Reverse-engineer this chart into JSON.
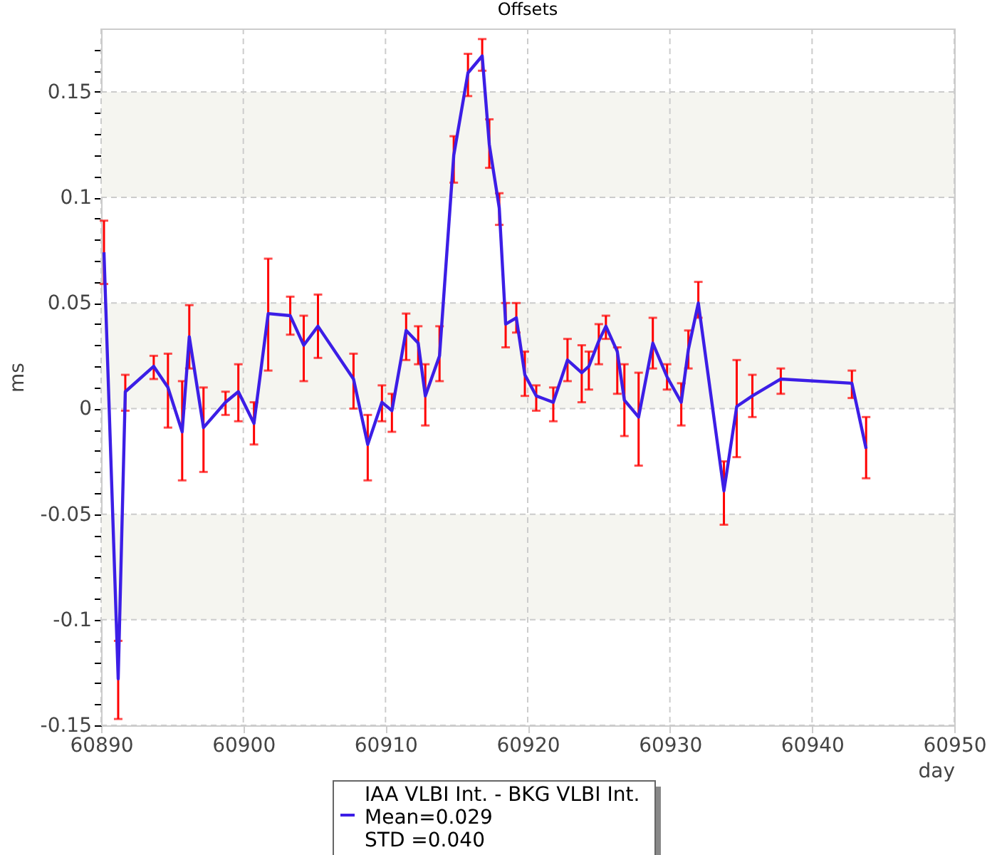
{
  "chart_data": {
    "type": "line",
    "title": "Offsets",
    "xlabel": "day",
    "ylabel": "ms",
    "x": [
      60890.2,
      60891.2,
      60891.7,
      60893.7,
      60894.7,
      60895.7,
      60896.2,
      60897.2,
      60898.75,
      60899.65,
      60900.75,
      60901.75,
      60903.3,
      60904.25,
      60905.25,
      60907.75,
      60908.75,
      60909.75,
      60910.45,
      60911.45,
      60912.3,
      60912.8,
      60913.8,
      60914.8,
      60915.8,
      60916.8,
      60917.3,
      60918.0,
      60918.45,
      60919.2,
      60919.8,
      60920.6,
      60921.8,
      60922.8,
      60923.8,
      60924.3,
      60925.0,
      60925.5,
      60926.3,
      60926.8,
      60927.8,
      60928.8,
      60929.8,
      60930.8,
      60931.3,
      60932.0,
      60933.8,
      60934.7,
      60935.8,
      60937.8,
      60942.8,
      60943.8
    ],
    "series": [
      {
        "name": "IAA VLBI Int. - BKG VLBI Int.",
        "color": "#3c1ee6",
        "values": [
          0.074,
          -0.128,
          0.008,
          0.02,
          0.01,
          -0.011,
          0.034,
          -0.009,
          0.003,
          0.008,
          -0.007,
          0.045,
          0.044,
          0.03,
          0.039,
          0.014,
          -0.017,
          0.003,
          -0.001,
          0.037,
          0.031,
          0.006,
          0.025,
          0.12,
          0.159,
          0.167,
          0.125,
          0.095,
          0.04,
          0.043,
          0.016,
          0.006,
          0.003,
          0.023,
          0.017,
          0.02,
          0.032,
          0.039,
          0.027,
          0.004,
          -0.004,
          0.031,
          0.015,
          0.003,
          0.028,
          0.05,
          -0.039,
          0.001,
          0.006,
          0.014,
          0.012,
          -0.019
        ],
        "errors": [
          [
            0.059,
            0.089
          ],
          [
            -0.147,
            -0.11
          ],
          [
            -0.001,
            0.016
          ],
          [
            0.014,
            0.025
          ],
          [
            -0.009,
            0.026
          ],
          [
            -0.034,
            0.013
          ],
          [
            0.019,
            0.049
          ],
          [
            -0.03,
            0.01
          ],
          [
            -0.003,
            0.008
          ],
          [
            -0.006,
            0.021
          ],
          [
            -0.017,
            0.003
          ],
          [
            0.018,
            0.071
          ],
          [
            0.035,
            0.053
          ],
          [
            0.013,
            0.044
          ],
          [
            0.024,
            0.054
          ],
          [
            0.0,
            0.026
          ],
          [
            -0.034,
            -0.003
          ],
          [
            -0.006,
            0.011
          ],
          [
            -0.011,
            0.007
          ],
          [
            0.023,
            0.045
          ],
          [
            0.021,
            0.039
          ],
          [
            -0.008,
            0.021
          ],
          [
            0.013,
            0.039
          ],
          [
            0.107,
            0.129
          ],
          [
            0.148,
            0.168
          ],
          [
            0.16,
            0.175
          ],
          [
            0.114,
            0.137
          ],
          [
            0.087,
            0.102
          ],
          [
            0.029,
            0.05
          ],
          [
            0.036,
            0.05
          ],
          [
            0.006,
            0.027
          ],
          [
            -0.001,
            0.011
          ],
          [
            -0.006,
            0.01
          ],
          [
            0.013,
            0.033
          ],
          [
            0.003,
            0.03
          ],
          [
            0.009,
            0.027
          ],
          [
            0.021,
            0.04
          ],
          [
            0.033,
            0.044
          ],
          [
            0.007,
            0.029
          ],
          [
            -0.013,
            0.021
          ],
          [
            -0.027,
            0.017
          ],
          [
            0.019,
            0.043
          ],
          [
            0.009,
            0.021
          ],
          [
            -0.008,
            0.012
          ],
          [
            0.019,
            0.037
          ],
          [
            0.043,
            0.06
          ],
          [
            -0.055,
            -0.025
          ],
          [
            -0.023,
            0.023
          ],
          [
            -0.004,
            0.016
          ],
          [
            0.007,
            0.019
          ],
          [
            0.005,
            0.018
          ],
          [
            -0.033,
            -0.004
          ]
        ]
      }
    ],
    "annotations": [
      "Mean=0.029",
      "STD =0.040"
    ],
    "xlim": [
      60890,
      60950
    ],
    "xticks": [
      60890,
      60900,
      60910,
      60920,
      60930,
      60940,
      60950
    ],
    "ylim": [
      -0.15,
      0.18
    ],
    "yticks": [
      {
        "value": -0.15,
        "label": "-0.15"
      },
      {
        "value": -0.14,
        "label": null
      },
      {
        "value": -0.13,
        "label": null
      },
      {
        "value": -0.12,
        "label": null
      },
      {
        "value": -0.11,
        "label": null
      },
      {
        "value": -0.1,
        "label": "-0.1"
      },
      {
        "value": -0.09,
        "label": null
      },
      {
        "value": -0.08,
        "label": null
      },
      {
        "value": -0.07,
        "label": null
      },
      {
        "value": -0.06,
        "label": null
      },
      {
        "value": -0.05,
        "label": "-0.05"
      },
      {
        "value": -0.04,
        "label": null
      },
      {
        "value": -0.03,
        "label": null
      },
      {
        "value": -0.02,
        "label": null
      },
      {
        "value": -0.01,
        "label": null
      },
      {
        "value": 0,
        "label": "0"
      },
      {
        "value": 0.01,
        "label": null
      },
      {
        "value": 0.02,
        "label": null
      },
      {
        "value": 0.03,
        "label": null
      },
      {
        "value": 0.04,
        "label": null
      },
      {
        "value": 0.05,
        "label": "0.05"
      },
      {
        "value": 0.06,
        "label": null
      },
      {
        "value": 0.07,
        "label": null
      },
      {
        "value": 0.08,
        "label": null
      },
      {
        "value": 0.09,
        "label": null
      },
      {
        "value": 0.1,
        "label": "0.1"
      },
      {
        "value": 0.11,
        "label": null
      },
      {
        "value": 0.12,
        "label": null
      },
      {
        "value": 0.13,
        "label": null
      },
      {
        "value": 0.14,
        "label": null
      },
      {
        "value": 0.15,
        "label": "0.15"
      },
      {
        "value": 0.16,
        "label": null
      },
      {
        "value": 0.17,
        "label": null
      }
    ],
    "bands": [
      {
        "axis": "y",
        "from": 0.1,
        "to": 0.15,
        "color": "#f5f5f0"
      },
      {
        "axis": "y",
        "from": 0,
        "to": 0.05,
        "color": "#f5f5f0"
      },
      {
        "axis": "y",
        "from": -0.1,
        "to": -0.05,
        "color": "#f5f5f0"
      }
    ],
    "grid": true,
    "legend": "bottom",
    "line_style": "solid"
  }
}
